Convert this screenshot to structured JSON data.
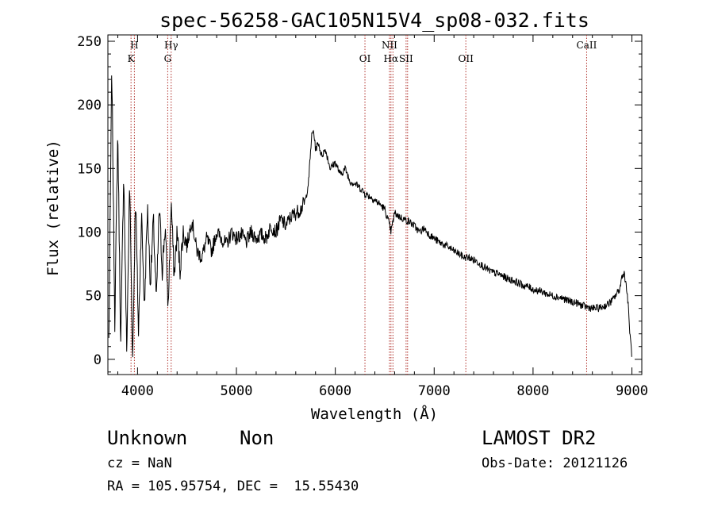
{
  "chart_data": {
    "type": "line",
    "title": "spec-56258-GAC105N15V4_sp08-032.fits",
    "xlabel": "Wavelength (Å)",
    "ylabel": "Flux (relative)",
    "xlim": [
      3700,
      9100
    ],
    "ylim": [
      -12,
      255
    ],
    "xticks": [
      4000,
      5000,
      6000,
      7000,
      8000,
      9000
    ],
    "yticks": [
      0,
      50,
      100,
      150,
      200,
      250
    ],
    "grid": false,
    "series": [
      {
        "x": [
          3710,
          3740,
          3770,
          3800,
          3830,
          3860,
          3890,
          3920,
          3950,
          3980,
          4010,
          4040,
          4070,
          4100,
          4130,
          4160,
          4190,
          4220,
          4250,
          4280,
          4310,
          4340,
          4370,
          4400,
          4430,
          4460,
          4500,
          4550,
          4600,
          4650,
          4700,
          4750,
          4800,
          4850,
          4900,
          4950,
          5000,
          5050,
          5100,
          5150,
          5200,
          5250,
          5300,
          5350,
          5400,
          5450,
          5500,
          5550,
          5600,
          5650,
          5700,
          5730,
          5760,
          5780,
          5800,
          5830,
          5860,
          5900,
          5950,
          6000,
          6050,
          6100,
          6150,
          6200,
          6250,
          6300,
          6350,
          6400,
          6450,
          6500,
          6550,
          6563,
          6600,
          6650,
          6700,
          6750,
          6800,
          6850,
          6900,
          6950,
          7000,
          7050,
          7100,
          7150,
          7200,
          7250,
          7300,
          7350,
          7400,
          7450,
          7500,
          7550,
          7600,
          7650,
          7700,
          7750,
          7800,
          7850,
          7900,
          7950,
          8000,
          8050,
          8100,
          8150,
          8200,
          8250,
          8300,
          8350,
          8400,
          8450,
          8500,
          8550,
          8600,
          8650,
          8700,
          8750,
          8800,
          8850,
          8880,
          8900,
          8920,
          8940,
          8960,
          8980,
          9000
        ],
        "y": [
          15,
          230,
          30,
          180,
          10,
          150,
          5,
          140,
          0,
          130,
          20,
          115,
          40,
          120,
          60,
          110,
          45,
          120,
          70,
          105,
          40,
          125,
          65,
          100,
          70,
          100,
          90,
          110,
          85,
          80,
          95,
          85,
          100,
          95,
          90,
          100,
          95,
          98,
          92,
          100,
          95,
          98,
          95,
          105,
          100,
          110,
          105,
          112,
          115,
          118,
          125,
          140,
          175,
          180,
          165,
          170,
          160,
          165,
          150,
          155,
          145,
          150,
          140,
          138,
          135,
          130,
          128,
          125,
          122,
          118,
          105,
          100,
          115,
          112,
          110,
          108,
          105,
          100,
          103,
          98,
          95,
          92,
          90,
          88,
          85,
          83,
          80,
          80,
          78,
          76,
          73,
          70,
          68,
          67,
          65,
          63,
          62,
          60,
          58,
          57,
          55,
          54,
          53,
          51,
          50,
          49,
          48,
          46,
          45,
          44,
          42,
          41,
          40,
          40,
          41,
          43,
          46,
          52,
          56,
          66,
          68,
          60,
          45,
          20,
          2
        ]
      }
    ],
    "lines": [
      {
        "x": 3934,
        "label": "K"
      },
      {
        "x": 3968,
        "label": "H"
      },
      {
        "x": 4305,
        "label": "G"
      },
      {
        "x": 4340,
        "label": "Hγ"
      },
      {
        "x": 6300,
        "label": "OI"
      },
      {
        "x": 6548,
        "label": "NII"
      },
      {
        "x": 6563,
        "label": "Hα"
      },
      {
        "x": 6583,
        "label": "NII"
      },
      {
        "x": 6716,
        "label": "SII"
      },
      {
        "x": 6731,
        "label": "SII"
      },
      {
        "x": 7320,
        "label": "OII"
      },
      {
        "x": 8542,
        "label": "CaII"
      }
    ],
    "line_color": "#000000",
    "marker_color": "#b0302a"
  },
  "info": {
    "class": "Unknown",
    "subclass": "Non",
    "cz": "cz = NaN",
    "radec": "RA = 105.95754, DEC =  15.55430",
    "survey": "LAMOST DR2",
    "obs_date": "Obs-Date: 20121126"
  }
}
